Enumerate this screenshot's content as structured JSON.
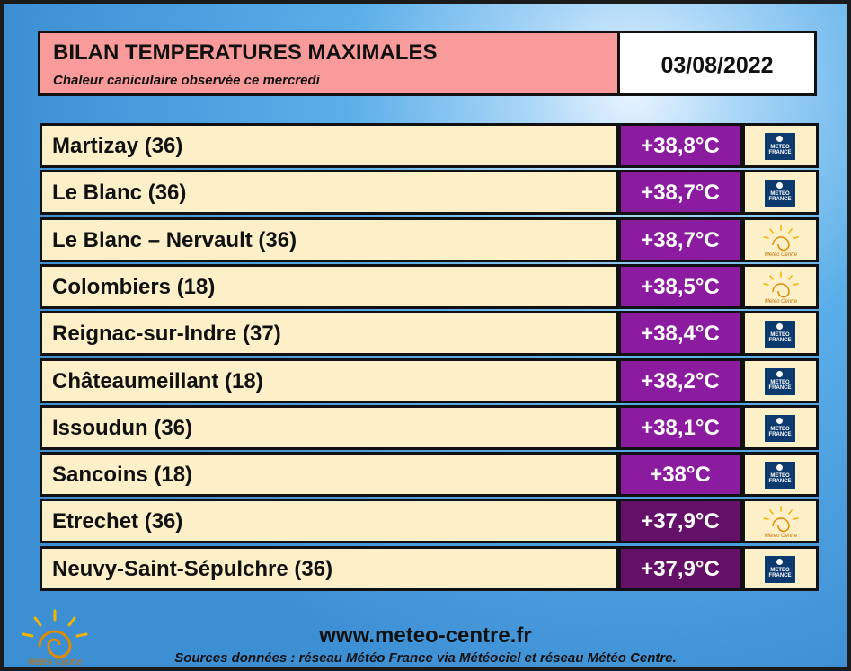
{
  "header": {
    "title": "BILAN TEMPERATURES MAXIMALES",
    "subtitle": "Chaleur caniculaire observée ce mercredi",
    "date": "03/08/2022"
  },
  "rows": [
    {
      "station": "Martizay (36)",
      "temperature": "+38,8°C",
      "color": "#8b1b9f",
      "source": "METEO FRANCE"
    },
    {
      "station": "Le Blanc (36)",
      "temperature": "+38,7°C",
      "color": "#8b1b9f",
      "source": "METEO FRANCE"
    },
    {
      "station": "Le Blanc – Nervault (36)",
      "temperature": "+38,7°C",
      "color": "#8b1b9f",
      "source": "Météo Centre"
    },
    {
      "station": "Colombiers (18)",
      "temperature": "+38,5°C",
      "color": "#8b1b9f",
      "source": "Météo Centre"
    },
    {
      "station": "Reignac-sur-Indre (37)",
      "temperature": "+38,4°C",
      "color": "#8b1b9f",
      "source": "METEO FRANCE"
    },
    {
      "station": "Châteaumeillant (18)",
      "temperature": "+38,2°C",
      "color": "#8b1b9f",
      "source": "METEO FRANCE"
    },
    {
      "station": "Issoudun (36)",
      "temperature": "+38,1°C",
      "color": "#8b1b9f",
      "source": "METEO FRANCE"
    },
    {
      "station": "Sancoins (18)",
      "temperature": "+38°C",
      "color": "#8b1b9f",
      "source": "METEO FRANCE"
    },
    {
      "station": "Etrechet (36)",
      "temperature": "+37,9°C",
      "color": "#651068",
      "source": "Météo Centre"
    },
    {
      "station": "Neuvy-Saint-Sépulchre (36)",
      "temperature": "+37,9°C",
      "color": "#651068",
      "source": "METEO FRANCE"
    }
  ],
  "footer": {
    "url": "www.meteo-centre.fr",
    "sources": "Sources données : réseau Météo France via Météociel et réseau Météo Centre.",
    "logo": "Météo Centre"
  }
}
